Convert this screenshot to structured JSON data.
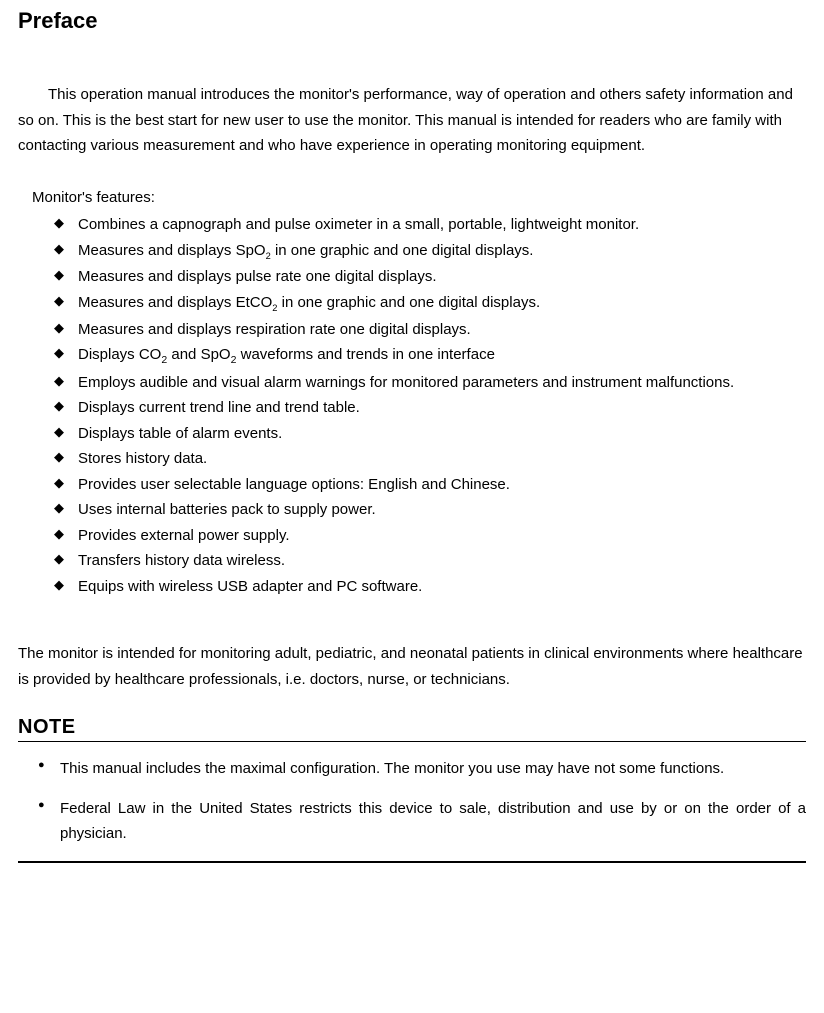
{
  "title": "Preface",
  "intro": "This operation manual introduces the monitor's performance, way of operation and others safety information and so on. This is the best start for new user to use the monitor. This manual is intended for readers who are family with contacting various measurement and who have experience in operating monitoring equipment.",
  "features_label": "Monitor's features:",
  "features": [
    "Combines a capnograph and pulse oximeter in a small, portable, lightweight monitor.",
    "Measures and displays SpO2 in one graphic and one digital displays.",
    "Measures and displays pulse rate one digital displays.",
    "Measures and displays EtCO2 in one graphic and one digital displays.",
    "Measures and displays respiration rate one digital displays.",
    "Displays CO2 and SpO2 waveforms and trends in one interface",
    "Employs audible and visual alarm warnings for monitored parameters and instrument malfunctions.",
    "Displays current trend line and trend table.",
    "Displays table of alarm events.",
    "Stores history data.",
    "Provides user selectable language options: English and Chinese.",
    "Uses internal batteries pack to supply power.",
    "Provides external power supply.",
    "Transfers history data wireless.",
    "Equips with wireless USB adapter and PC software."
  ],
  "intended_use": "The monitor is intended for monitoring adult, pediatric, and neonatal patients in clinical environments where healthcare is provided by healthcare professionals, i.e. doctors, nurse, or technicians.",
  "note_heading": "NOTE",
  "notes": [
    "This manual includes the maximal configuration. The monitor you use may have not some functions.",
    "Federal Law in the United States restricts this device to sale, distribution and use by or on the order of a physician."
  ]
}
